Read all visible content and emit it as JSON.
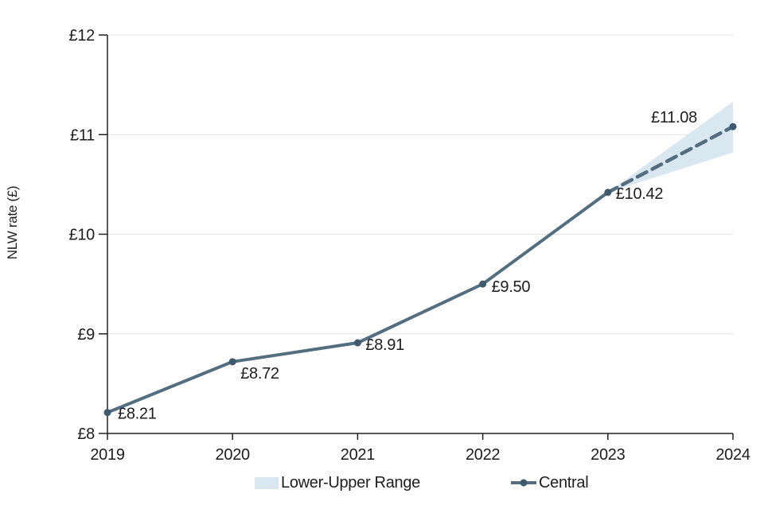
{
  "chart_data": {
    "type": "line",
    "title": "",
    "ylabel": "NLW rate (£)",
    "xlabel": "",
    "x": [
      2019,
      2020,
      2021,
      2022,
      2023,
      2024
    ],
    "xlim": [
      2019,
      2024
    ],
    "ylim": [
      8,
      12
    ],
    "yticks": [
      {
        "value": 8,
        "label": "£8"
      },
      {
        "value": 9,
        "label": "£9"
      },
      {
        "value": 10,
        "label": "£10"
      },
      {
        "value": 11,
        "label": "£11"
      },
      {
        "value": 12,
        "label": "£12"
      }
    ],
    "grid": "horizontal",
    "legend_position": "bottom",
    "series": [
      {
        "name": "Central",
        "values": [
          8.21,
          8.72,
          8.91,
          9.5,
          10.42,
          11.08
        ],
        "point_labels": [
          "£8.21",
          "£8.72",
          "£8.91",
          "£9.50",
          "£10.42",
          "£11.08"
        ],
        "solid_until": 2023,
        "projection_style": "dashed"
      }
    ],
    "band": {
      "name": "Lower-Upper Range",
      "x": [
        2023,
        2024
      ],
      "lower": [
        10.42,
        10.82
      ],
      "upper": [
        10.42,
        11.33
      ]
    }
  },
  "legend": {
    "range_label": "Lower-Upper Range",
    "central_label": "Central"
  },
  "colors": {
    "line": "#536e7f",
    "marker": "#3d5a6e",
    "band": "#d8e7f0",
    "grid": "#e3e3e3",
    "axis": "#202020",
    "text": "#1d1d1d"
  }
}
